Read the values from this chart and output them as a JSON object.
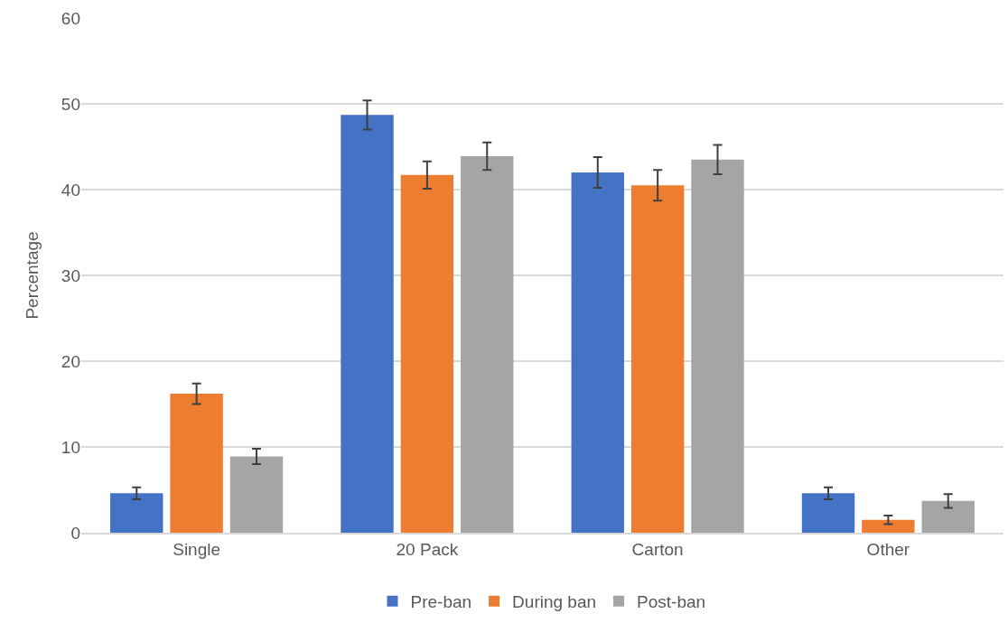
{
  "chart_data": {
    "type": "bar",
    "ylabel": "Percentage",
    "categories": [
      "Single",
      "20 Pack",
      "Carton",
      "Other"
    ],
    "series": [
      {
        "name": "Pre-ban",
        "color": "#4472c4",
        "values": [
          4.6,
          48.7,
          42.0,
          4.6
        ],
        "errors": [
          0.7,
          1.7,
          1.8,
          0.7
        ]
      },
      {
        "name": "During ban",
        "color": "#ed7d31",
        "values": [
          16.2,
          41.7,
          40.5,
          1.5
        ],
        "errors": [
          1.2,
          1.6,
          1.8,
          0.5
        ]
      },
      {
        "name": "Post-ban",
        "color": "#a5a5a5",
        "values": [
          8.9,
          43.9,
          43.5,
          3.7
        ],
        "errors": [
          0.9,
          1.6,
          1.7,
          0.8
        ]
      }
    ],
    "ylim": [
      0,
      60
    ],
    "yticks": [
      0,
      10,
      20,
      30,
      40,
      50,
      60
    ],
    "grid": "y",
    "legend": "bottom"
  }
}
